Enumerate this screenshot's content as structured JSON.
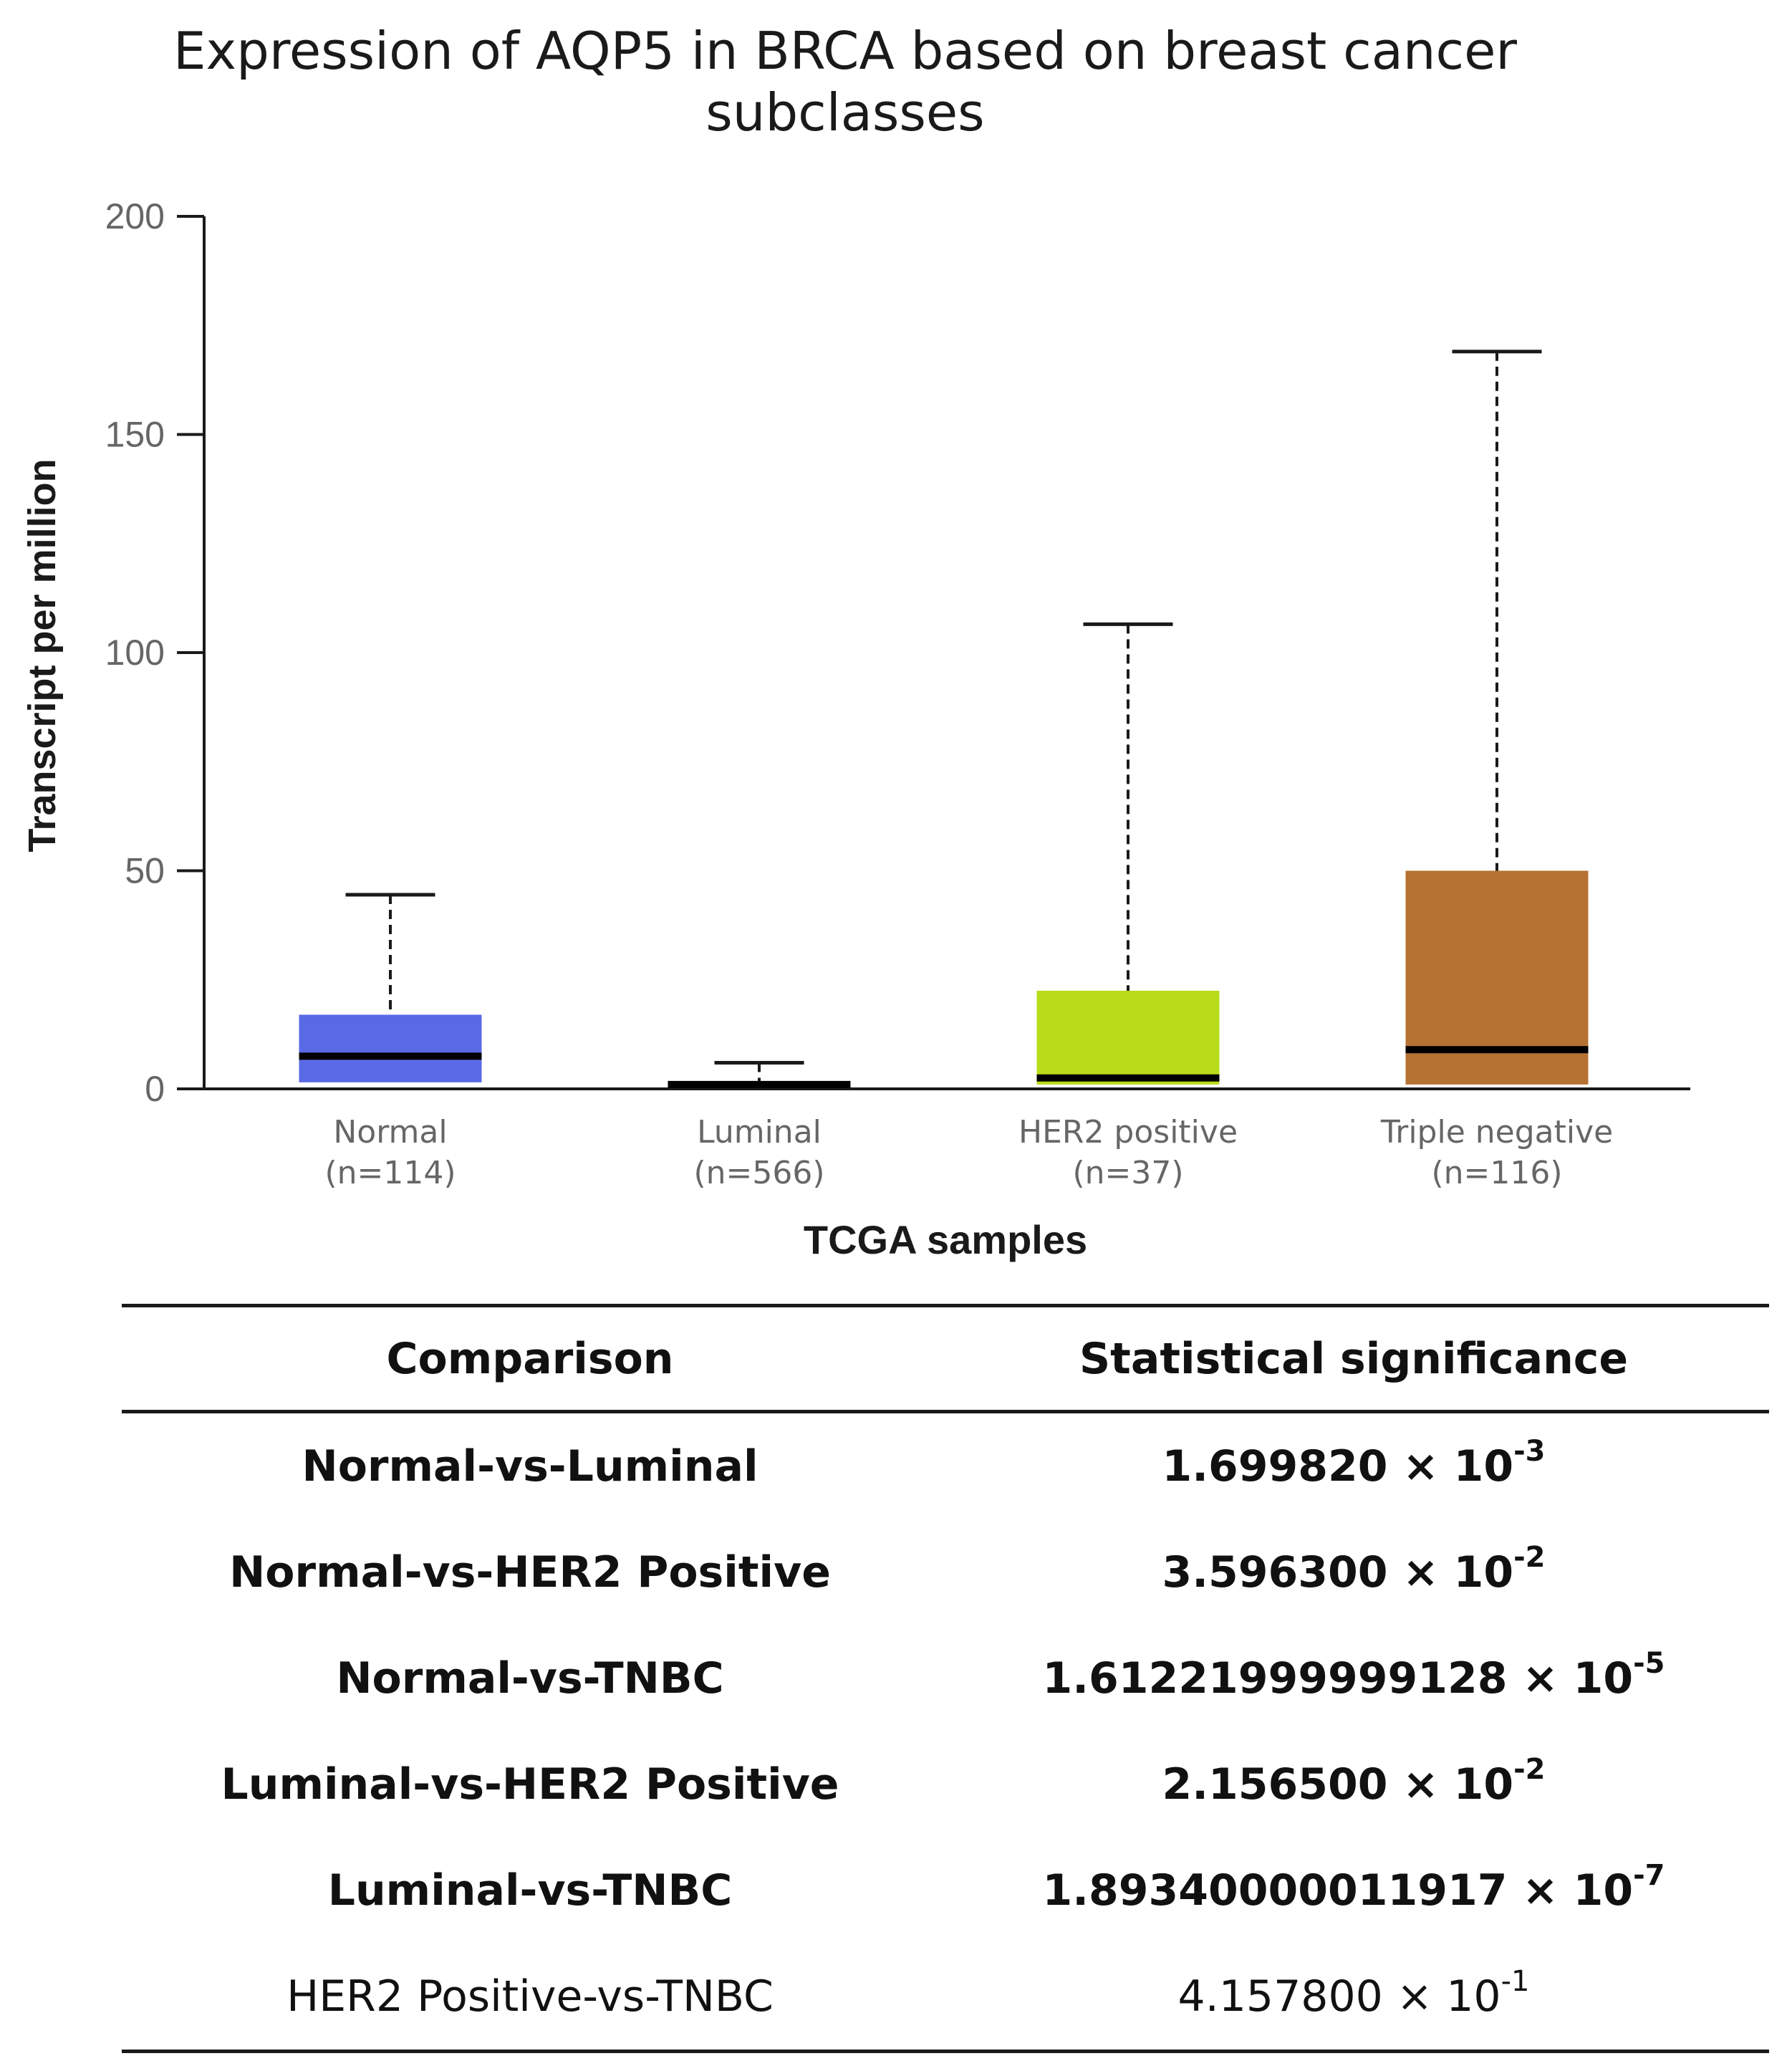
{
  "chart_data": {
    "type": "boxplot",
    "title": [
      "Expression of AQP5 in BRCA based on breast cancer",
      "subclasses"
    ],
    "xlabel": "TCGA samples",
    "ylabel": "Transcript per million",
    "ylim": [
      0,
      200
    ],
    "yticks": [
      0,
      50,
      100,
      150,
      200
    ],
    "categories": [
      {
        "name": "Normal",
        "n": "(n=114)",
        "color": "#5a6ae6",
        "whisker_low": 1.5,
        "q1": 1.5,
        "median": 7.5,
        "q3": 17,
        "whisker_high": 44.5
      },
      {
        "name": "Luminal",
        "n": "(n=566)",
        "color": "#1f1f5a",
        "whisker_low": 0.3,
        "q1": 0.3,
        "median": 1.0,
        "q3": 1.8,
        "whisker_high": 6
      },
      {
        "name": "HER2 positive",
        "n": "(n=37)",
        "color": "#b8dc18",
        "whisker_low": 1,
        "q1": 1,
        "median": 2.5,
        "q3": 22.5,
        "whisker_high": 106.5
      },
      {
        "name": "Triple negative",
        "n": "(n=116)",
        "color": "#b57233",
        "whisker_low": 1,
        "q1": 1,
        "median": 9,
        "q3": 50,
        "whisker_high": 169
      }
    ]
  },
  "table": {
    "headers": [
      "Comparison",
      "Statistical  significance"
    ],
    "rows": [
      {
        "comparison": "Normal-vs-Luminal",
        "mantissa": "1.699820 × 10",
        "exponent": "-3",
        "bold": true
      },
      {
        "comparison": "Normal-vs-HER2  Positive",
        "mantissa": "3.596300 × 10",
        "exponent": "-2",
        "bold": true
      },
      {
        "comparison": "Normal-vs-TNBC",
        "mantissa": "1.61221999999128 × 10",
        "exponent": "-5",
        "bold": true
      },
      {
        "comparison": "Luminal-vs-HER2  Positive",
        "mantissa": "2.156500 × 10",
        "exponent": "-2",
        "bold": true
      },
      {
        "comparison": "Luminal-vs-TNBC",
        "mantissa": "1.89340000011917 × 10",
        "exponent": "-7",
        "bold": true
      },
      {
        "comparison": "HER2 Positive-vs-TNBC",
        "mantissa": "4.157800 × 10",
        "exponent": "-1",
        "bold": false
      }
    ]
  }
}
